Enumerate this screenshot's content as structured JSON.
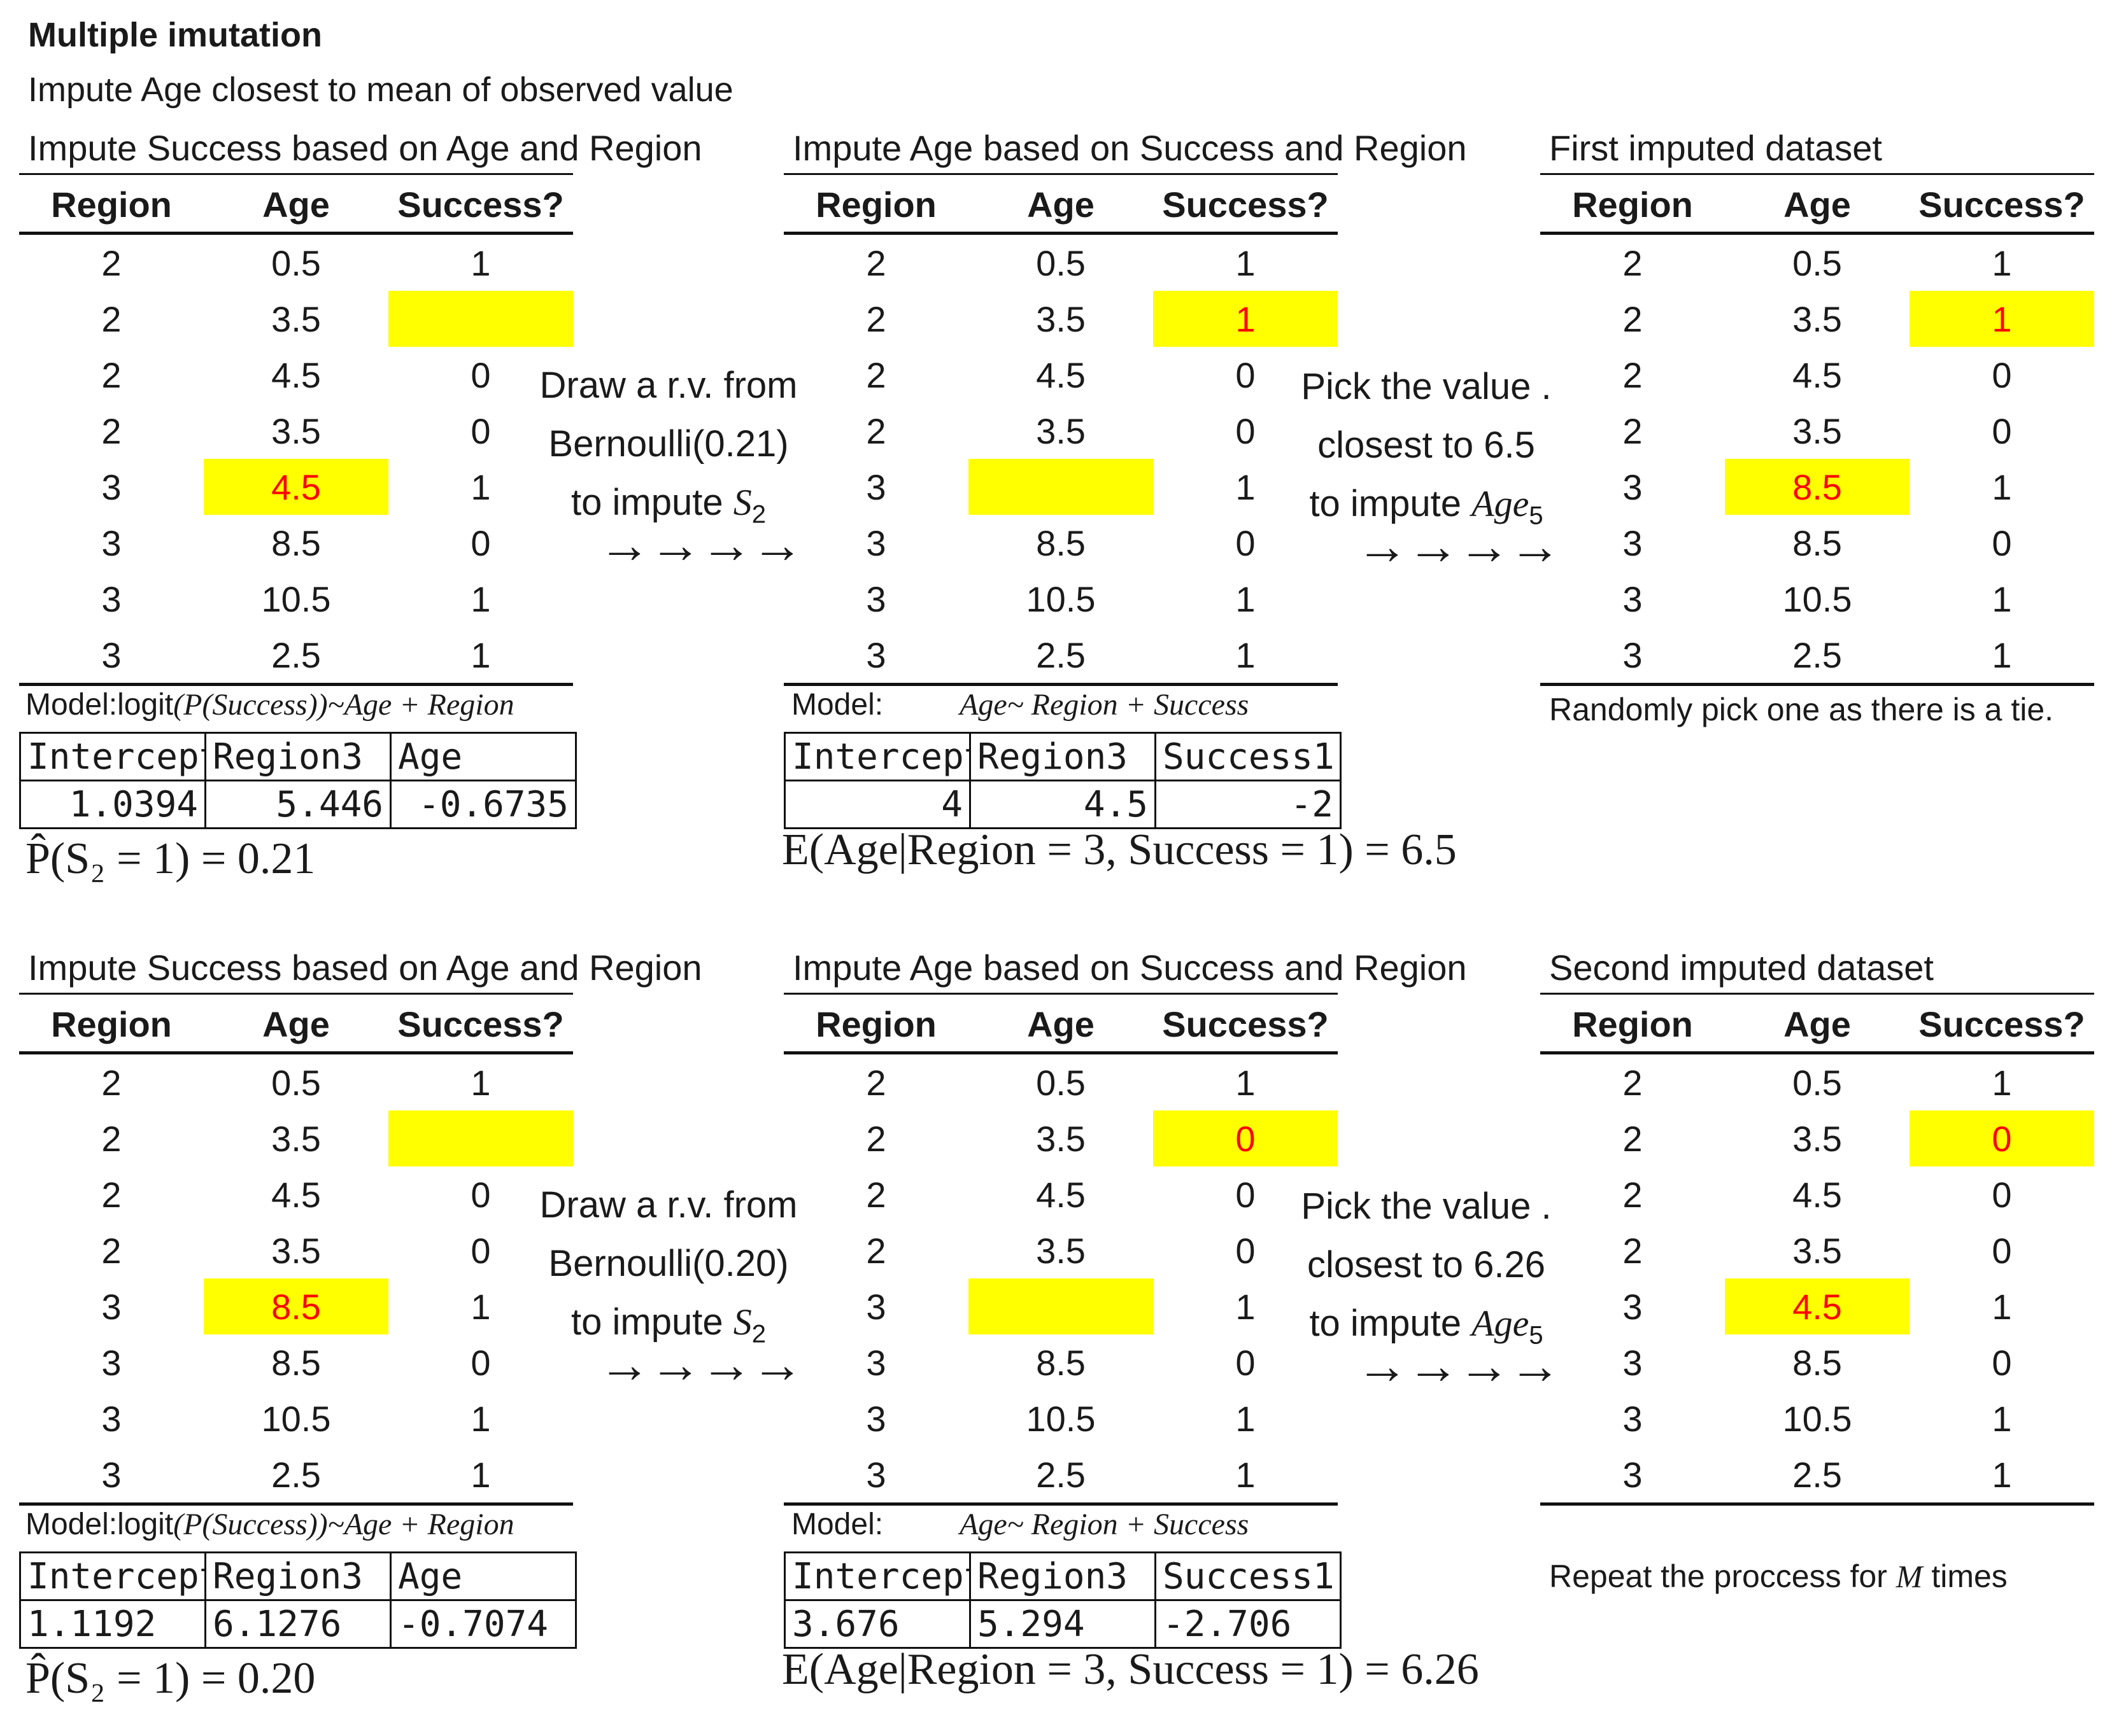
{
  "title": "Multiple imutation",
  "subtitle": "Impute Age closest to mean of observed value",
  "table_headers": [
    "Region",
    "Age",
    "Success?"
  ],
  "panels": {
    "row1": {
      "t1_title": "Impute Success based on Age and Region",
      "t1": [
        [
          "2",
          "0.5",
          "1"
        ],
        [
          "2",
          "3.5",
          ""
        ],
        [
          "2",
          "4.5",
          "0"
        ],
        [
          "2",
          "3.5",
          "0"
        ],
        [
          "3",
          "4.5",
          "1"
        ],
        [
          "3",
          "8.5",
          "0"
        ],
        [
          "3",
          "10.5",
          "1"
        ],
        [
          "3",
          "2.5",
          "1"
        ]
      ],
      "draw_line1": "Draw  a r.v. from",
      "draw_line2": "Bernoulli(0.21)",
      "draw_line3": "to impute",
      "draw_var": "S",
      "draw_sub": "2",
      "arrows": "→→→→",
      "model1_prefix": "Model:logit",
      "model1_formula": "(P(Success))~Age +  Region",
      "coef1_headers": [
        "Intercept",
        "Region3",
        "Age"
      ],
      "coef1_values": [
        "1.0394",
        "5.446",
        "-0.6735"
      ],
      "prob_text": "P̂(S₂ = 1) = 0.21",
      "t2_title": "Impute Age  based on Success and Region",
      "t2": [
        [
          "2",
          "0.5",
          "1"
        ],
        [
          "2",
          "3.5",
          "1"
        ],
        [
          "2",
          "4.5",
          "0"
        ],
        [
          "2",
          "3.5",
          "0"
        ],
        [
          "3",
          "",
          "1"
        ],
        [
          "3",
          "8.5",
          "0"
        ],
        [
          "3",
          "10.5",
          "1"
        ],
        [
          "3",
          "2.5",
          "1"
        ]
      ],
      "pick_line1": "Pick the value .",
      "pick_line2": "closest to 6.5",
      "pick_line3": "to impute",
      "pick_var": "Age",
      "pick_sub": "5",
      "model2_prefix": "Model:",
      "model2_formula": "Age~ Region + Success",
      "coef2_headers": [
        "Intercept",
        "Region3",
        "Success1"
      ],
      "coef2_values": [
        "4",
        "4.5",
        "-2"
      ],
      "expect_text": "E(Age|Region = 3, Success = 1) = 6.5",
      "t3_title": "First imputed dataset",
      "t3": [
        [
          "2",
          "0.5",
          "1"
        ],
        [
          "2",
          "3.5",
          "1"
        ],
        [
          "2",
          "4.5",
          "0"
        ],
        [
          "2",
          "3.5",
          "0"
        ],
        [
          "3",
          "8.5",
          "1"
        ],
        [
          "3",
          "8.5",
          "0"
        ],
        [
          "3",
          "10.5",
          "1"
        ],
        [
          "3",
          "2.5",
          "1"
        ]
      ],
      "note": "Randomly pick one as there is a tie."
    },
    "row2": {
      "t1_title": "Impute Success based on Age and Region",
      "t1": [
        [
          "2",
          "0.5",
          "1"
        ],
        [
          "2",
          "3.5",
          ""
        ],
        [
          "2",
          "4.5",
          "0"
        ],
        [
          "2",
          "3.5",
          "0"
        ],
        [
          "3",
          "8.5",
          "1"
        ],
        [
          "3",
          "8.5",
          "0"
        ],
        [
          "3",
          "10.5",
          "1"
        ],
        [
          "3",
          "2.5",
          "1"
        ]
      ],
      "draw_line1": "Draw  a r.v. from",
      "draw_line2": "Bernoulli(0.20)",
      "draw_line3": "to impute",
      "draw_var": "S",
      "draw_sub": "2",
      "arrows": "→→→→",
      "model1_prefix": "Model:logit",
      "model1_formula": "(P(Success))~Age +  Region",
      "coef1_headers": [
        "Intercept",
        "Region3",
        "Age"
      ],
      "coef1_values": [
        "1.1192",
        "6.1276",
        "-0.7074"
      ],
      "prob_text": "P̂(S₂ = 1) = 0.20",
      "t2_title": "Impute Age  based on Success and Region",
      "t2": [
        [
          "2",
          "0.5",
          "1"
        ],
        [
          "2",
          "3.5",
          "0"
        ],
        [
          "2",
          "4.5",
          "0"
        ],
        [
          "2",
          "3.5",
          "0"
        ],
        [
          "3",
          "",
          "1"
        ],
        [
          "3",
          "8.5",
          "0"
        ],
        [
          "3",
          "10.5",
          "1"
        ],
        [
          "3",
          "2.5",
          "1"
        ]
      ],
      "pick_line1": "Pick the value .",
      "pick_line2": "closest to 6.26",
      "pick_line3": "to impute",
      "pick_var": "Age",
      "pick_sub": "5",
      "model2_prefix": "Model:",
      "model2_formula": "Age~ Region + Success",
      "coef2_headers": [
        "Intercept",
        "Region3",
        "Success1"
      ],
      "coef2_values": [
        "3.676",
        "5.294",
        "-2.706"
      ],
      "expect_text": "E(Age|Region = 3, Success = 1) = 6.26",
      "t3_title": "Second imputed dataset",
      "t3": [
        [
          "2",
          "0.5",
          "1"
        ],
        [
          "2",
          "3.5",
          "0"
        ],
        [
          "2",
          "4.5",
          "0"
        ],
        [
          "2",
          "3.5",
          "0"
        ],
        [
          "3",
          "4.5",
          "1"
        ],
        [
          "3",
          "8.5",
          "0"
        ],
        [
          "3",
          "10.5",
          "1"
        ],
        [
          "3",
          "2.5",
          "1"
        ]
      ],
      "note_prefix": "Repeat the proccess for",
      "note_var": "M",
      "note_suffix": "times"
    }
  },
  "colors": {
    "highlight": "#ffff00",
    "imputed_text": "#ff0000"
  }
}
